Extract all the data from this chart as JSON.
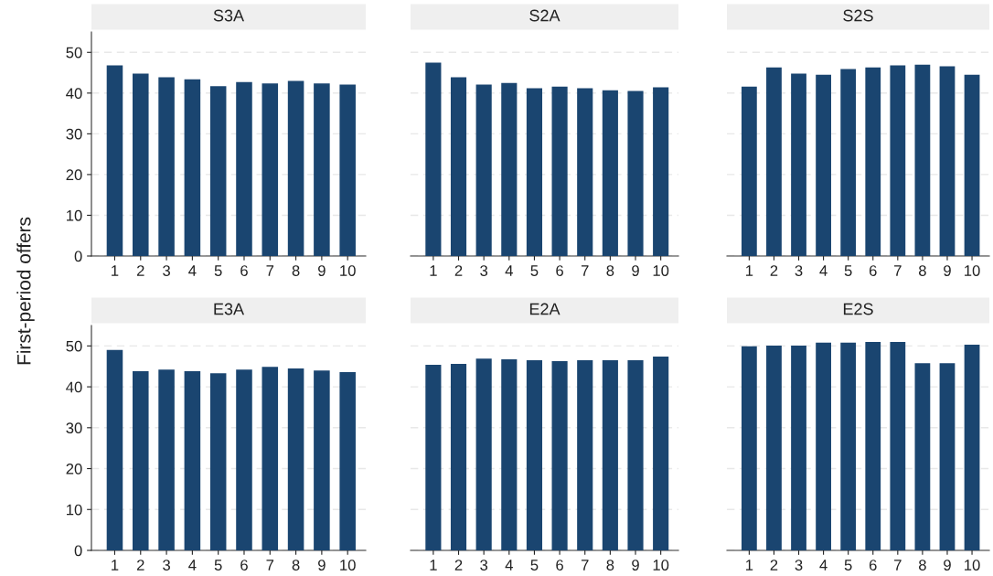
{
  "chart_data": [
    {
      "type": "bar",
      "title": "S3A",
      "ylabel": "First-period offers",
      "categories": [
        "1",
        "2",
        "3",
        "4",
        "5",
        "6",
        "7",
        "8",
        "9",
        "10"
      ],
      "values": [
        46.8,
        44.8,
        43.9,
        43.4,
        41.7,
        42.7,
        42.4,
        43.0,
        42.4,
        42.1
      ],
      "color": "#1a4570",
      "ylim": [
        0,
        55
      ],
      "yticks": [
        0,
        10,
        20,
        30,
        40,
        50
      ],
      "grid": "y"
    },
    {
      "type": "bar",
      "title": "S2A",
      "categories": [
        "1",
        "2",
        "3",
        "4",
        "5",
        "6",
        "7",
        "8",
        "9",
        "10"
      ],
      "values": [
        47.5,
        43.9,
        42.1,
        42.5,
        41.2,
        41.6,
        41.2,
        40.7,
        40.5,
        41.4
      ],
      "color": "#1a4570",
      "yticks": [
        0,
        10,
        20,
        30,
        40,
        50
      ],
      "grid": "y",
      "tick_labels": "x"
    },
    {
      "type": "bar",
      "title": "S2S",
      "categories": [
        "1",
        "2",
        "3",
        "4",
        "5",
        "6",
        "7",
        "8",
        "9",
        "10"
      ],
      "values": [
        41.6,
        46.3,
        44.8,
        44.5,
        45.9,
        46.3,
        46.8,
        47.0,
        46.6,
        44.5
      ],
      "color": "#1a4570",
      "yticks": [
        0,
        10,
        20,
        30,
        40,
        50
      ],
      "grid": "y",
      "tick_labels": "x"
    },
    {
      "type": "bar",
      "title": "E3A",
      "categories": [
        "1",
        "2",
        "3",
        "4",
        "5",
        "6",
        "7",
        "8",
        "9",
        "10"
      ],
      "values": [
        49.0,
        43.8,
        44.2,
        43.8,
        43.3,
        44.2,
        44.9,
        44.5,
        44.0,
        43.6
      ],
      "color": "#1a4570",
      "ylim": [
        0,
        55
      ],
      "yticks": [
        0,
        10,
        20,
        30,
        40,
        50
      ],
      "grid": "y"
    },
    {
      "type": "bar",
      "title": "E2A",
      "categories": [
        "1",
        "2",
        "3",
        "4",
        "5",
        "6",
        "7",
        "8",
        "9",
        "10"
      ],
      "values": [
        45.4,
        45.6,
        46.9,
        46.7,
        46.5,
        46.3,
        46.5,
        46.5,
        46.5,
        47.4
      ],
      "color": "#1a4570",
      "yticks": [
        0,
        10,
        20,
        30,
        40,
        50
      ],
      "grid": "y",
      "tick_labels": "x"
    },
    {
      "type": "bar",
      "title": "E2S",
      "categories": [
        "1",
        "2",
        "3",
        "4",
        "5",
        "6",
        "7",
        "8",
        "9",
        "10"
      ],
      "values": [
        49.9,
        50.1,
        50.1,
        50.8,
        50.8,
        51.0,
        51.0,
        45.8,
        45.8,
        50.3
      ],
      "color": "#1a4570",
      "yticks": [
        0,
        10,
        20,
        30,
        40,
        50
      ],
      "grid": "y",
      "tick_labels": "x"
    }
  ]
}
